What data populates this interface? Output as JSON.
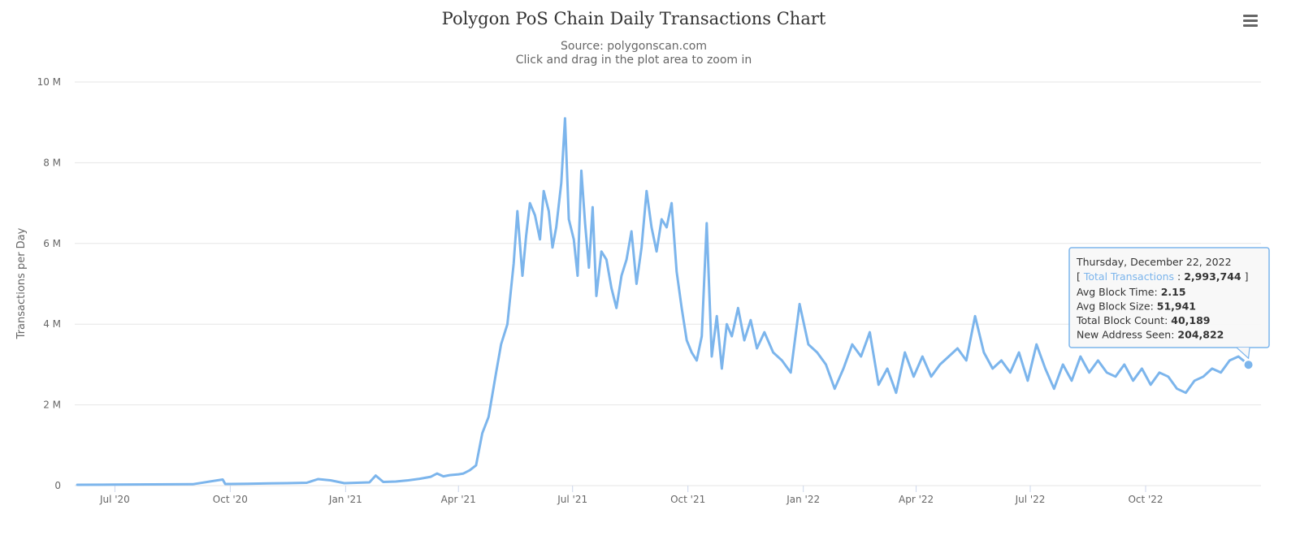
{
  "menu": {
    "icon": "hamburger-menu-icon"
  },
  "chart_data": {
    "type": "line",
    "title": "Polygon PoS Chain Daily Transactions Chart",
    "subtitle_lines": [
      "Source: polygonscan.com",
      "Click and drag in the plot area to zoom in"
    ],
    "xlabel": "",
    "ylabel": "Transactions per Day",
    "ylim": [
      0,
      10000000
    ],
    "y_ticks": [
      0,
      2000000,
      4000000,
      6000000,
      8000000,
      10000000
    ],
    "y_tick_labels": [
      "0",
      "2 M",
      "4 M",
      "6 M",
      "8 M",
      "10 M"
    ],
    "xlim": [
      "2020-05-30",
      "2023-01-01"
    ],
    "x_ticks": [
      "2020-07-01",
      "2020-10-01",
      "2021-01-01",
      "2021-04-01",
      "2021-07-01",
      "2021-10-01",
      "2022-01-01",
      "2022-04-01",
      "2022-07-01",
      "2022-10-01"
    ],
    "x_tick_labels": [
      "Jul '20",
      "Oct '20",
      "Jan '21",
      "Apr '21",
      "Jul '21",
      "Oct '21",
      "Jan '22",
      "Apr '22",
      "Jul '22",
      "Oct '22"
    ],
    "grid": true,
    "legend": "none",
    "colors": {
      "line": "#7cb5ec",
      "grid": "#e6e6e6"
    },
    "series": [
      {
        "x": [
          "2020-06-01",
          "2020-07-01",
          "2020-08-01",
          "2020-09-01",
          "2020-09-25",
          "2020-09-27",
          "2020-10-01",
          "2020-10-15",
          "2020-11-01",
          "2020-11-15",
          "2020-12-01",
          "2020-12-10",
          "2020-12-20",
          "2020-12-31",
          "2021-01-10",
          "2021-01-20",
          "2021-01-25",
          "2021-01-31",
          "2021-02-10",
          "2021-02-20",
          "2021-03-01",
          "2021-03-10",
          "2021-03-15",
          "2021-03-20",
          "2021-03-25",
          "2021-04-01",
          "2021-04-05",
          "2021-04-10",
          "2021-04-15",
          "2021-04-20",
          "2021-04-25",
          "2021-05-01",
          "2021-05-05",
          "2021-05-10",
          "2021-05-15",
          "2021-05-18",
          "2021-05-22",
          "2021-05-25",
          "2021-05-28",
          "2021-06-01",
          "2021-06-05",
          "2021-06-08",
          "2021-06-12",
          "2021-06-15",
          "2021-06-18",
          "2021-06-22",
          "2021-06-25",
          "2021-06-28",
          "2021-07-02",
          "2021-07-05",
          "2021-07-08",
          "2021-07-11",
          "2021-07-14",
          "2021-07-17",
          "2021-07-20",
          "2021-07-24",
          "2021-07-28",
          "2021-08-01",
          "2021-08-05",
          "2021-08-09",
          "2021-08-13",
          "2021-08-17",
          "2021-08-21",
          "2021-08-25",
          "2021-08-29",
          "2021-09-02",
          "2021-09-06",
          "2021-09-10",
          "2021-09-14",
          "2021-09-18",
          "2021-09-22",
          "2021-09-26",
          "2021-09-30",
          "2021-10-04",
          "2021-10-08",
          "2021-10-12",
          "2021-10-16",
          "2021-10-20",
          "2021-10-24",
          "2021-10-28",
          "2021-11-01",
          "2021-11-05",
          "2021-11-10",
          "2021-11-15",
          "2021-11-20",
          "2021-11-25",
          "2021-12-01",
          "2021-12-08",
          "2021-12-15",
          "2021-12-22",
          "2021-12-29",
          "2022-01-05",
          "2022-01-12",
          "2022-01-19",
          "2022-01-26",
          "2022-02-02",
          "2022-02-09",
          "2022-02-16",
          "2022-02-23",
          "2022-03-02",
          "2022-03-09",
          "2022-03-16",
          "2022-03-23",
          "2022-03-30",
          "2022-04-06",
          "2022-04-13",
          "2022-04-20",
          "2022-04-27",
          "2022-05-04",
          "2022-05-11",
          "2022-05-18",
          "2022-05-25",
          "2022-06-01",
          "2022-06-08",
          "2022-06-15",
          "2022-06-22",
          "2022-06-29",
          "2022-07-06",
          "2022-07-13",
          "2022-07-20",
          "2022-07-27",
          "2022-08-03",
          "2022-08-10",
          "2022-08-17",
          "2022-08-24",
          "2022-08-31",
          "2022-09-07",
          "2022-09-14",
          "2022-09-21",
          "2022-09-28",
          "2022-10-05",
          "2022-10-12",
          "2022-10-19",
          "2022-10-26",
          "2022-11-02",
          "2022-11-09",
          "2022-11-16",
          "2022-11-23",
          "2022-11-30",
          "2022-12-07",
          "2022-12-14",
          "2022-12-22"
        ],
        "y": [
          20000,
          25000,
          30000,
          35000,
          150000,
          40000,
          40000,
          45000,
          55000,
          60000,
          70000,
          160000,
          130000,
          60000,
          70000,
          80000,
          250000,
          90000,
          100000,
          130000,
          170000,
          220000,
          300000,
          230000,
          260000,
          280000,
          300000,
          380000,
          500000,
          1300000,
          1700000,
          2800000,
          3500000,
          4000000,
          5500000,
          6800000,
          5200000,
          6200000,
          7000000,
          6700000,
          6100000,
          7300000,
          6800000,
          5900000,
          6400000,
          7500000,
          9100000,
          6600000,
          6100000,
          5200000,
          7800000,
          6500000,
          5400000,
          6900000,
          4700000,
          5800000,
          5600000,
          4900000,
          4400000,
          5200000,
          5600000,
          6300000,
          5000000,
          5900000,
          7300000,
          6400000,
          5800000,
          6600000,
          6400000,
          7000000,
          5300000,
          4400000,
          3600000,
          3300000,
          3100000,
          3700000,
          6500000,
          3200000,
          4200000,
          2900000,
          4000000,
          3700000,
          4400000,
          3600000,
          4100000,
          3400000,
          3800000,
          3300000,
          3100000,
          2800000,
          4500000,
          3500000,
          3300000,
          3000000,
          2400000,
          2900000,
          3500000,
          3200000,
          3800000,
          2500000,
          2900000,
          2300000,
          3300000,
          2700000,
          3200000,
          2700000,
          3000000,
          3200000,
          3400000,
          3100000,
          4200000,
          3300000,
          2900000,
          3100000,
          2800000,
          3300000,
          2600000,
          3500000,
          2900000,
          2400000,
          3000000,
          2600000,
          3200000,
          2800000,
          3100000,
          2800000,
          2700000,
          3000000,
          2600000,
          2900000,
          2500000,
          2800000,
          2700000,
          2400000,
          2300000,
          2600000,
          2700000,
          2900000,
          2800000,
          3100000,
          3200000,
          2993744
        ]
      }
    ]
  },
  "tooltip": {
    "date": "Thursday, December 22, 2022",
    "open_bracket": "[ ",
    "series_label": "Total Transactions",
    "colon": " : ",
    "series_value": "2,993,744",
    "close_bracket": " ]",
    "lines": [
      {
        "label": "Avg Block Time: ",
        "value": "2.15"
      },
      {
        "label": "Avg Block Size: ",
        "value": "51,941"
      },
      {
        "label": "Total Block Count: ",
        "value": "40,189"
      },
      {
        "label": "New Address Seen: ",
        "value": "204,822"
      }
    ],
    "point_x": "2022-12-22",
    "point_y": 2993744
  }
}
